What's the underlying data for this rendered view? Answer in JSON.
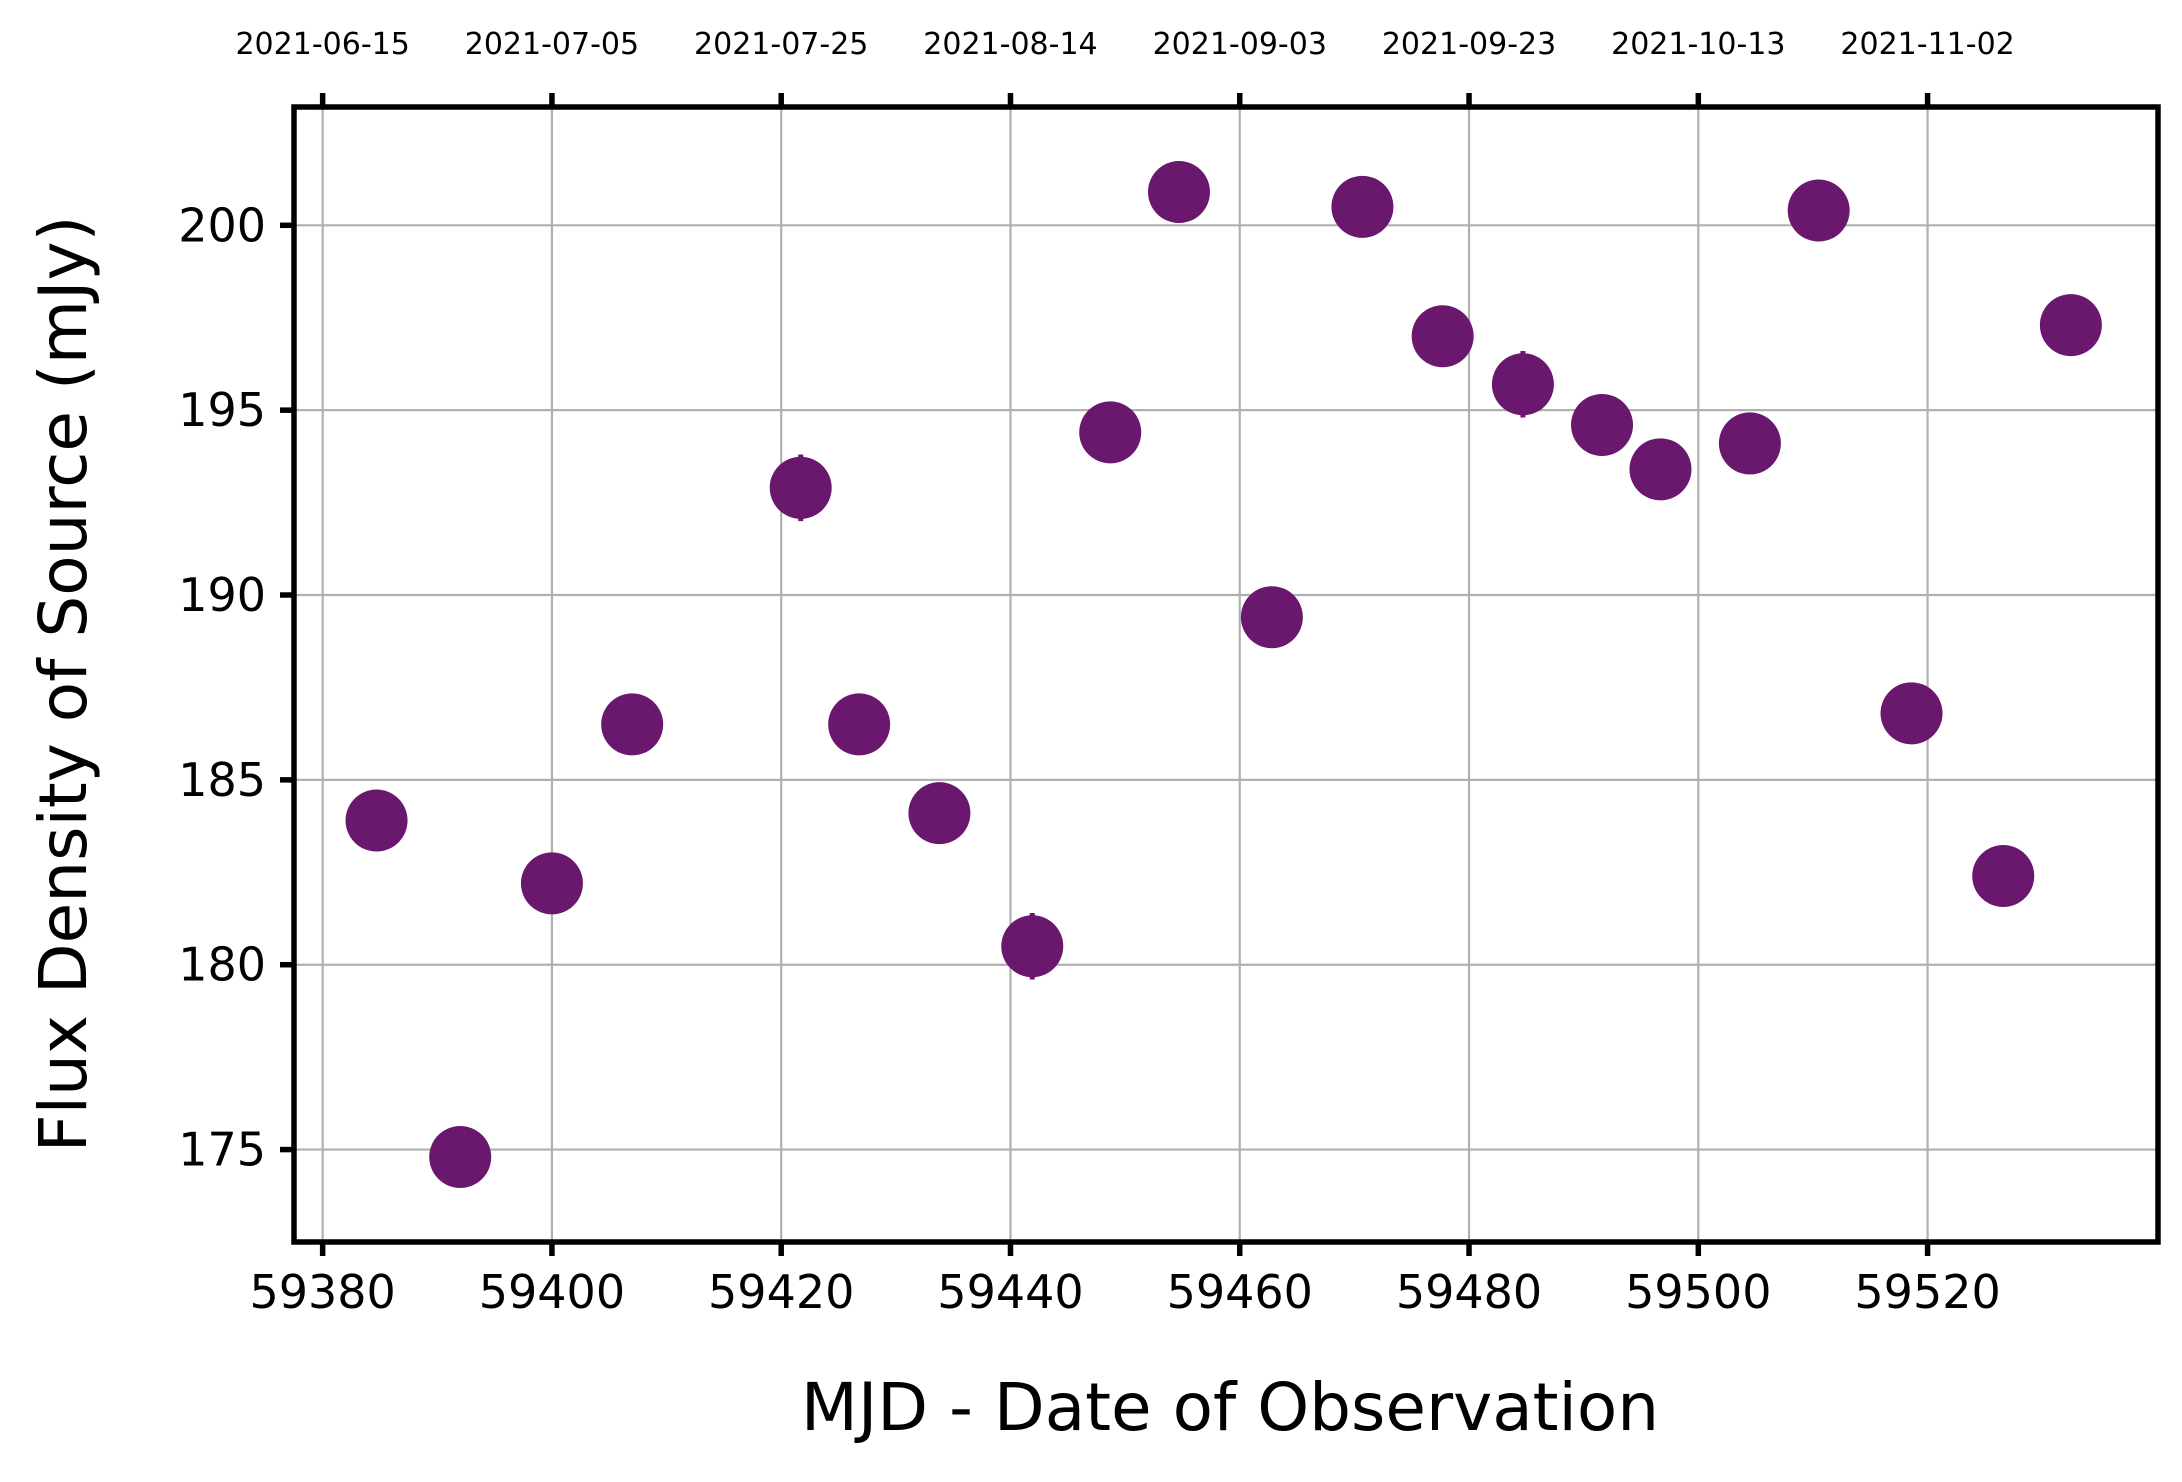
{
  "chart_data": {
    "type": "scatter",
    "xlabel": "MJD - Date of Observation",
    "ylabel": "Flux Density of Source (mJy)",
    "xlim": [
      59377.5,
      59540.1
    ],
    "ylim": [
      172.5,
      203.2
    ],
    "x_ticks": [
      59380,
      59400,
      59420,
      59440,
      59460,
      59480,
      59500,
      59520
    ],
    "y_ticks": [
      175,
      180,
      185,
      190,
      195,
      200
    ],
    "top_axis": {
      "x_ticks": [
        59380,
        59400,
        59420,
        59440,
        59460,
        59480,
        59500,
        59520
      ],
      "labels": [
        "2021-06-15",
        "2021-07-05",
        "2021-07-25",
        "2021-08-14",
        "2021-09-03",
        "2021-09-23",
        "2021-10-13",
        "2021-11-02"
      ]
    },
    "grid": true,
    "marker_color": "#6a176e",
    "series": [
      {
        "x": [
          59384.7,
          59392.0,
          59400.0,
          59407.0,
          59421.7,
          59426.8,
          59433.8,
          59441.9,
          59448.7,
          59454.7,
          59462.8,
          59470.7,
          59477.7,
          59484.7,
          59491.6,
          59496.7,
          59504.5,
          59510.5,
          59518.6,
          59526.6,
          59532.5
        ],
        "y": [
          183.9,
          174.8,
          182.2,
          186.5,
          192.9,
          186.5,
          184.1,
          180.5,
          194.4,
          200.9,
          189.4,
          200.5,
          197.0,
          195.7,
          194.6,
          193.4,
          194.1,
          200.4,
          186.8,
          182.4,
          197.3
        ],
        "yerr": [
          0.3,
          0.3,
          0.3,
          0.3,
          0.9,
          0.3,
          0.3,
          0.9,
          0.3,
          0.3,
          0.3,
          0.3,
          0.3,
          0.9,
          0.3,
          0.3,
          0.3,
          0.3,
          0.3,
          0.3,
          0.3
        ]
      }
    ]
  }
}
